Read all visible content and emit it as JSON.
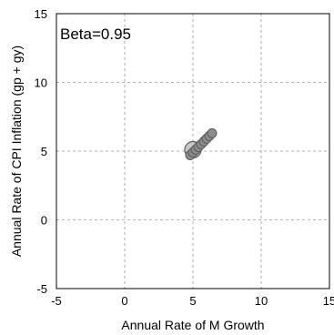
{
  "chart_data": {
    "type": "scatter",
    "title": "",
    "xlabel": "Annual Rate of M Growth",
    "ylabel": "Annual Rate of CPI Inflation (gp + gy)",
    "xlim": [
      -5,
      15
    ],
    "ylim": [
      -5,
      15
    ],
    "x_ticks": [
      -5,
      0,
      5,
      10,
      15
    ],
    "y_ticks": [
      -5,
      0,
      5,
      10,
      15
    ],
    "grid": true,
    "annotation": "Beta=0.95",
    "mean_point": {
      "x": 5.0,
      "y": 5.1
    },
    "trail": {
      "x": [
        4.8,
        5.0,
        5.2,
        5.4,
        5.6,
        5.8,
        6.0,
        6.2,
        6.4
      ],
      "y": [
        4.7,
        4.9,
        5.1,
        5.3,
        5.5,
        5.7,
        5.9,
        6.1,
        6.3
      ]
    },
    "colors": {
      "marker_fill": "#8c8c8c",
      "marker_stroke": "#5a5a5a",
      "circle_fill": "#c8c8c8",
      "grid": "#9a9a9a"
    }
  }
}
